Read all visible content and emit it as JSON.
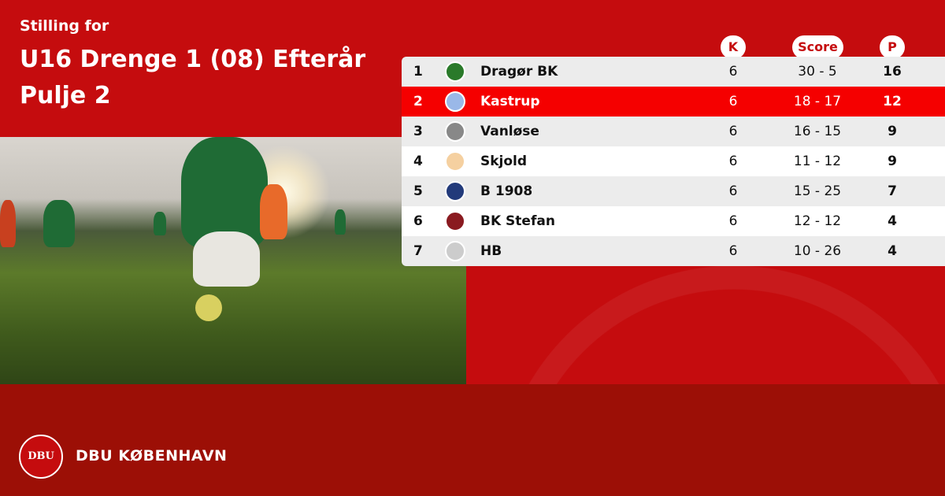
{
  "header": {
    "subtitle": "Stilling for",
    "title_line1": "U16 Drenge 1 (08) Efterår",
    "title_line2": "Pulje 2"
  },
  "columns": {
    "k": "K",
    "score": "Score",
    "p": "P"
  },
  "colors": {
    "background": "#c50c0e",
    "footer": "#9c0f06",
    "highlight": "#f50000",
    "row_alt": "#ececec"
  },
  "rows": [
    {
      "pos": "1",
      "team": "Dragør BK",
      "k": "6",
      "score": "30 - 5",
      "p": "16",
      "highlight": false
    },
    {
      "pos": "2",
      "team": "Kastrup",
      "k": "6",
      "score": "18 - 17",
      "p": "12",
      "highlight": true
    },
    {
      "pos": "3",
      "team": "Vanløse",
      "k": "6",
      "score": "16 - 15",
      "p": "9",
      "highlight": false
    },
    {
      "pos": "4",
      "team": "Skjold",
      "k": "6",
      "score": "11 - 12",
      "p": "9",
      "highlight": false
    },
    {
      "pos": "5",
      "team": "B 1908",
      "k": "6",
      "score": "15 - 25",
      "p": "7",
      "highlight": false
    },
    {
      "pos": "6",
      "team": "BK Stefan",
      "k": "6",
      "score": "12 - 12",
      "p": "4",
      "highlight": false
    },
    {
      "pos": "7",
      "team": "HB",
      "k": "6",
      "score": "10 - 26",
      "p": "4",
      "highlight": false
    }
  ],
  "footer": {
    "brand": "DBU KØBENHAVN",
    "logo_text": "DBU"
  }
}
